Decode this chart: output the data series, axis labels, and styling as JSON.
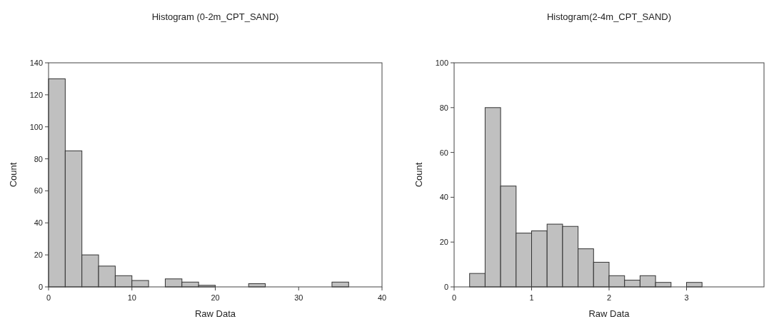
{
  "chart_data": [
    {
      "type": "histogram",
      "title": "Histogram (0-2m_CPT_SAND)",
      "xlabel": "Raw Data",
      "ylabel": "Count",
      "color": "#c0c0c0",
      "bins": [
        0,
        2,
        4,
        6,
        8,
        10,
        12,
        14,
        16,
        18,
        20,
        22,
        24,
        26,
        28,
        30,
        32,
        34,
        36
      ],
      "values": [
        130,
        85,
        20,
        13,
        7,
        4,
        0,
        5,
        3,
        1,
        0,
        0,
        2,
        0,
        0,
        0,
        0,
        3
      ],
      "xlim": [
        0,
        40
      ],
      "xticks": [
        0,
        10,
        20,
        30,
        40
      ],
      "ylim": [
        0,
        140
      ],
      "yticks": [
        0,
        20,
        40,
        60,
        80,
        100,
        120,
        140
      ]
    },
    {
      "type": "histogram",
      "title": "Histogram(2-4m_CPT_SAND)",
      "xlabel": "Raw Data",
      "ylabel": "Count",
      "color": "#c0c0c0",
      "bins": [
        0.2,
        0.4,
        0.6,
        0.8,
        1.0,
        1.2,
        1.4,
        1.6,
        1.8,
        2.0,
        2.2,
        2.4,
        2.6,
        2.8,
        3.0,
        3.2
      ],
      "values": [
        6,
        80,
        45,
        24,
        25,
        28,
        27,
        17,
        11,
        5,
        3,
        5,
        2,
        0,
        2
      ],
      "xlim": [
        0,
        4
      ],
      "xticks": [
        0,
        1,
        2,
        3
      ],
      "ylim": [
        0,
        100
      ],
      "yticks": [
        0,
        20,
        40,
        60,
        80,
        100
      ]
    }
  ]
}
